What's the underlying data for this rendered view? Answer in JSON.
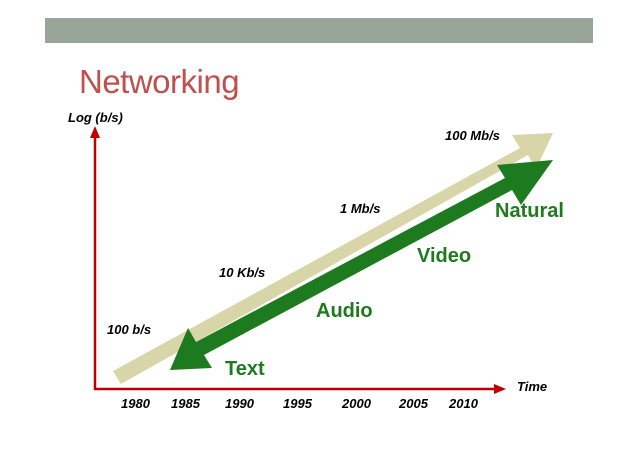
{
  "slide": {
    "title": "Networking",
    "bar_color": "#9aa59a",
    "title_color": "#c0504d"
  },
  "diagram": {
    "y_axis_label": "Log (b/s)",
    "x_axis_label": "Time",
    "axis_color": "#c00000",
    "years": [
      "1980",
      "1985",
      "1990",
      "1995",
      "2000",
      "2005",
      "2010"
    ],
    "rate_labels": {
      "r100b": "100 b/s",
      "r10k": "10 Kb/s",
      "r1m": "1 Mb/s",
      "r100m": "100 Mb/s"
    },
    "media_labels": {
      "text": "Text",
      "audio": "Audio",
      "video": "Video",
      "natural": "Natural"
    },
    "bandwidth_arrow_color": "#d8d6a8",
    "media_arrow_color": "#1e7a1e"
  }
}
